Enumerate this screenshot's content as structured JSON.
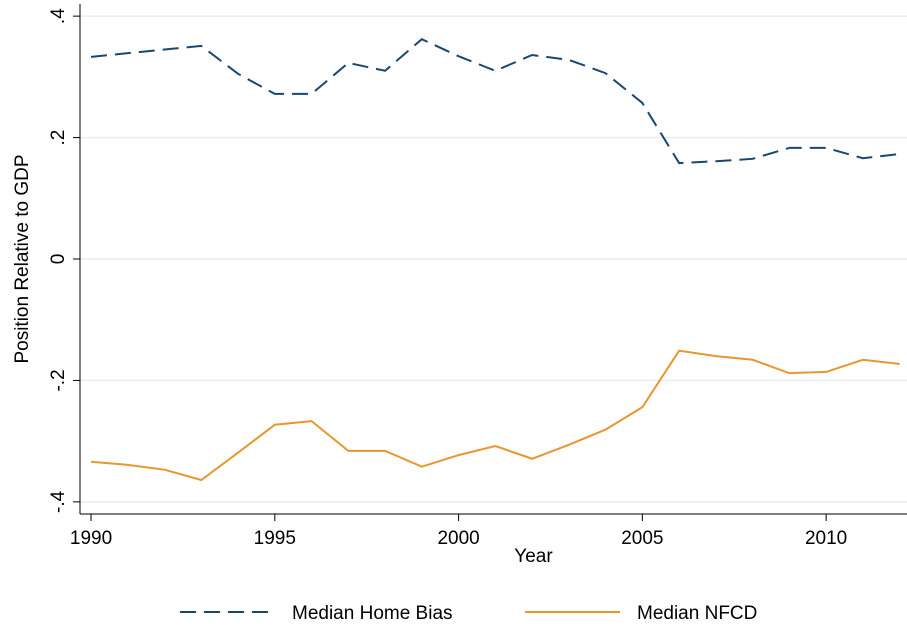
{
  "chart_data": {
    "type": "line",
    "x_label": "Year",
    "y_label": "Position Relative to GDP",
    "x": [
      1990,
      1991,
      1992,
      1993,
      1994,
      1995,
      1996,
      1997,
      1998,
      1999,
      2000,
      2001,
      2002,
      2003,
      2004,
      2005,
      2006,
      2007,
      2008,
      2009,
      2010,
      2011,
      2012
    ],
    "series": [
      {
        "name": "Median Home Bias",
        "color": "#1a476f",
        "style": "dashed",
        "values": [
          0.333,
          0.339,
          0.345,
          0.351,
          0.305,
          0.272,
          0.272,
          0.323,
          0.31,
          0.362,
          0.334,
          0.31,
          0.336,
          0.328,
          0.306,
          0.257,
          0.158,
          0.161,
          0.165,
          0.183,
          0.183,
          0.166,
          0.173
        ]
      },
      {
        "name": "Median NFCD",
        "color": "#e8962e",
        "style": "solid",
        "values": [
          -0.334,
          -0.339,
          -0.347,
          -0.364,
          -0.319,
          -0.273,
          -0.267,
          -0.316,
          -0.316,
          -0.342,
          -0.323,
          -0.308,
          -0.329,
          -0.306,
          -0.281,
          -0.244,
          -0.151,
          -0.16,
          -0.166,
          -0.188,
          -0.186,
          -0.166,
          -0.173
        ]
      }
    ],
    "xlim": [
      1989.7,
      2012.2
    ],
    "xticks": [
      1990,
      1995,
      2000,
      2005,
      2010
    ],
    "ylim": [
      -0.42,
      0.42
    ],
    "yticks": [
      {
        "value": 0.4,
        "label": ".4"
      },
      {
        "value": 0.2,
        "label": ".2"
      },
      0,
      {
        "value": -0.2,
        "label": "-.2"
      },
      {
        "value": -0.4,
        "label": "-.4"
      }
    ],
    "grid": true,
    "legend": "bottom"
  }
}
